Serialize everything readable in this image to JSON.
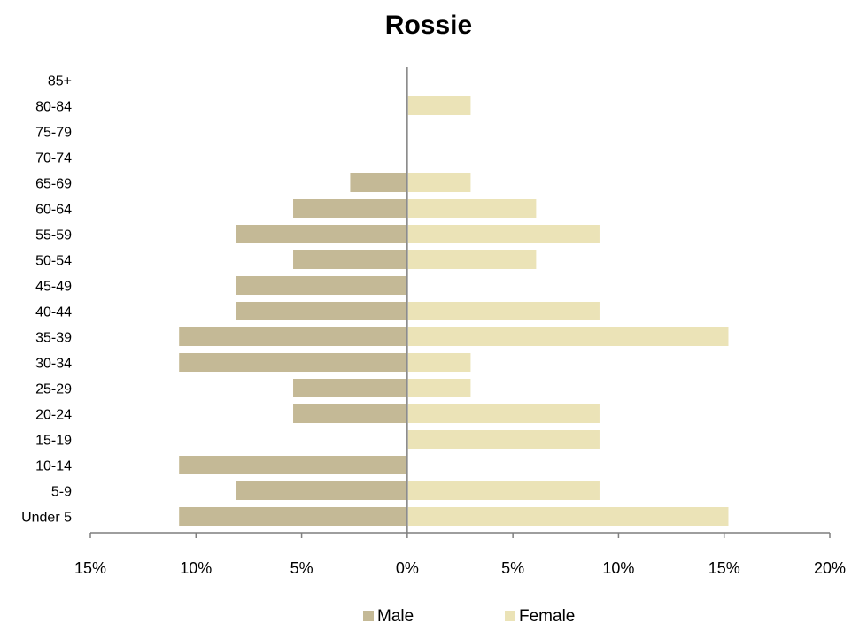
{
  "chart_data": {
    "type": "bar",
    "orientation": "horizontal",
    "title": "Rossie",
    "categories": [
      "Under 5",
      "5-9",
      "10-14",
      "15-19",
      "20-24",
      "25-29",
      "30-34",
      "35-39",
      "40-44",
      "45-49",
      "50-54",
      "55-59",
      "60-64",
      "65-69",
      "70-74",
      "75-79",
      "80-84",
      "85+"
    ],
    "series": [
      {
        "name": "Male",
        "color": "#c4b996",
        "values": [
          -10.8,
          -8.1,
          -10.8,
          0,
          -5.4,
          -5.4,
          -10.8,
          -10.8,
          -8.1,
          -8.1,
          -5.4,
          -8.1,
          -5.4,
          -2.7,
          0,
          0,
          0,
          0
        ]
      },
      {
        "name": "Female",
        "color": "#ebe3b7",
        "values": [
          15.2,
          9.1,
          0,
          9.1,
          9.1,
          3.0,
          3.0,
          15.2,
          9.1,
          0,
          6.1,
          9.1,
          6.1,
          3.0,
          0,
          0,
          3.0,
          0
        ]
      }
    ],
    "xlim": [
      -15,
      20
    ],
    "x_ticks": [
      -15,
      -10,
      -5,
      0,
      5,
      10,
      15,
      20
    ],
    "x_tick_labels": [
      "15%",
      "10%",
      "5%",
      "0%",
      "5%",
      "10%",
      "15%",
      "20%"
    ],
    "xlabel": "",
    "ylabel": "",
    "grid": false,
    "legend_position": "bottom"
  }
}
